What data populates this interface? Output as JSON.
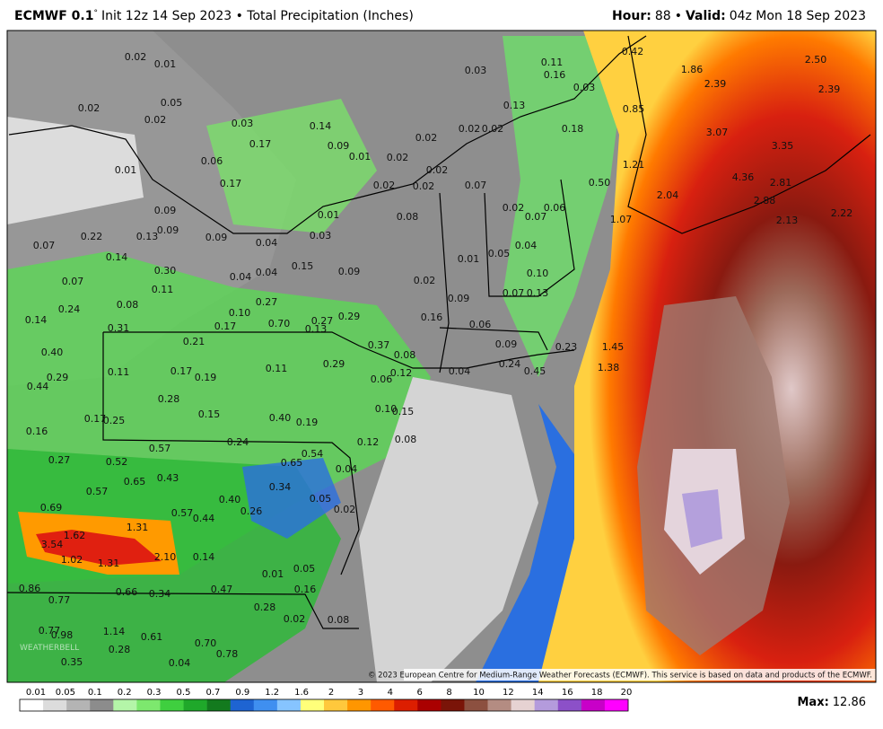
{
  "header": {
    "model": "ECMWF 0.1",
    "degree": "°",
    "run": "Init 12z 14 Sep 2023 • Total Precipitation (Inches)",
    "hour_label": "Hour:",
    "hour": "88",
    "sep": "•",
    "valid_label": "Valid:",
    "valid": "04z Mon 18 Sep 2023"
  },
  "map": {
    "labels": [
      "0.02",
      "0.01",
      "0.03",
      "0.11",
      "0.16",
      "0.42",
      "1.86",
      "2.39",
      "2.50",
      "2.39",
      "0.03",
      "0.02",
      "0.02",
      "0.05",
      "0.03",
      "0.14",
      "0.02",
      "0.02",
      "0.02",
      "0.13",
      "0.18",
      "0.85",
      "3.07",
      "3.35",
      "0.17",
      "0.09",
      "0.06",
      "0.01",
      "0.02",
      "0.02",
      "0.01",
      "1.21",
      "4.36",
      "2.81",
      "0.17",
      "0.50",
      "2.04",
      "2.88",
      "0.02",
      "0.02",
      "0.07",
      "0.02",
      "0.07",
      "0.06",
      "1.07",
      "2.13",
      "2.22",
      "0.09",
      "0.08",
      "0.01",
      "0.03",
      "0.09",
      "0.13",
      "0.09",
      "0.04",
      "0.22",
      "0.07",
      "0.04",
      "0.14",
      "0.01",
      "0.05",
      "0.30",
      "0.04",
      "0.04",
      "0.15",
      "0.09",
      "0.02",
      "0.10",
      "0.07",
      "0.11",
      "0.07",
      "0.13",
      "0.09",
      "0.08",
      "0.24",
      "0.10",
      "0.27",
      "0.70",
      "0.27",
      "0.29",
      "0.16",
      "0.06",
      "0.14",
      "0.31",
      "0.17",
      "0.13",
      "0.21",
      "0.37",
      "0.08",
      "0.09",
      "0.23",
      "1.45",
      "0.40",
      "0.29",
      "0.11",
      "0.12",
      "0.04",
      "0.24",
      "0.45",
      "1.38",
      "0.11",
      "0.17",
      "0.19",
      "0.06",
      "0.29",
      "0.44",
      "0.28",
      "0.15",
      "0.40",
      "0.19",
      "0.10",
      "0.15",
      "0.17",
      "0.25",
      "0.16",
      "0.08",
      "0.24",
      "0.12",
      "0.57",
      "0.54",
      "0.27",
      "0.52",
      "0.65",
      "0.04",
      "0.65",
      "0.43",
      "0.34",
      "0.57",
      "0.40",
      "0.05",
      "0.02",
      "0.69",
      "0.57",
      "0.44",
      "0.26",
      "1.31",
      "1.62",
      "3.54",
      "2.10",
      "1.02",
      "0.14",
      "1.31",
      "0.01",
      "0.05",
      "0.86",
      "0.66",
      "0.34",
      "0.47",
      "0.16",
      "0.77",
      "0.28",
      "0.02",
      "0.08",
      "1.14",
      "0.77",
      "0.98",
      "0.61",
      "0.70",
      "0.28",
      "0.78",
      "0.35",
      "0.04"
    ],
    "logo": "WEATHERBELL",
    "credit": "© 2023 European Centre for Medium-Range Weather Forecasts (ECMWF). This service is based on data and products of the ECMWF."
  },
  "legend": {
    "ticks": [
      "0.01",
      "0.05",
      "0.1",
      "0.2",
      "0.3",
      "0.5",
      "0.7",
      "0.9",
      "1.2",
      "1.6",
      "2",
      "3",
      "4",
      "6",
      "8",
      "10",
      "12",
      "14",
      "16",
      "18",
      "20"
    ],
    "colors": [
      "#ffffff",
      "#dcdcdc",
      "#b4b4b4",
      "#8c8c8c",
      "#b4f5a8",
      "#7de86e",
      "#3fcf3f",
      "#1fa82a",
      "#137a1e",
      "#1e64d2",
      "#3f8ff0",
      "#86c4ff",
      "#ffff7a",
      "#ffc83c",
      "#ff9600",
      "#ff5a00",
      "#dc1e00",
      "#aa0000",
      "#7a1408",
      "#8c5040",
      "#b48c82",
      "#e6d2d2",
      "#b49bdc",
      "#8c50c8",
      "#c800c8",
      "#ff00ff"
    ],
    "max_label": "Max:",
    "max": "12.86"
  }
}
